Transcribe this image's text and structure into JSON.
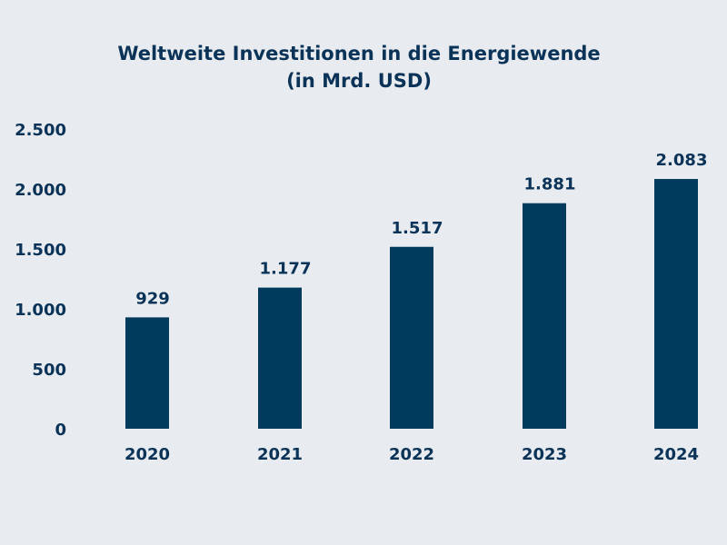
{
  "chart_data": {
    "type": "bar",
    "title": "Weltweite Investitionen in die Energiewende",
    "subtitle": "(in Mrd. USD)",
    "categories": [
      "2020",
      "2021",
      "2022",
      "2023",
      "2024"
    ],
    "values": [
      929,
      1177,
      1517,
      1881,
      2083
    ],
    "data_labels": [
      "929",
      "1.177",
      "1.517",
      "1.881",
      "2.083"
    ],
    "ylim": [
      0,
      2500
    ],
    "yticks": [
      0,
      500,
      1000,
      1500,
      2000,
      2500
    ],
    "ytick_labels": [
      "0",
      "500",
      "1.000",
      "1.500",
      "2.000",
      "2.500"
    ],
    "xlabel": "",
    "ylabel": "",
    "grid": false,
    "colors": {
      "bar": "#003a5d",
      "text": "#0b3358",
      "background": "#e8ecf0"
    }
  }
}
